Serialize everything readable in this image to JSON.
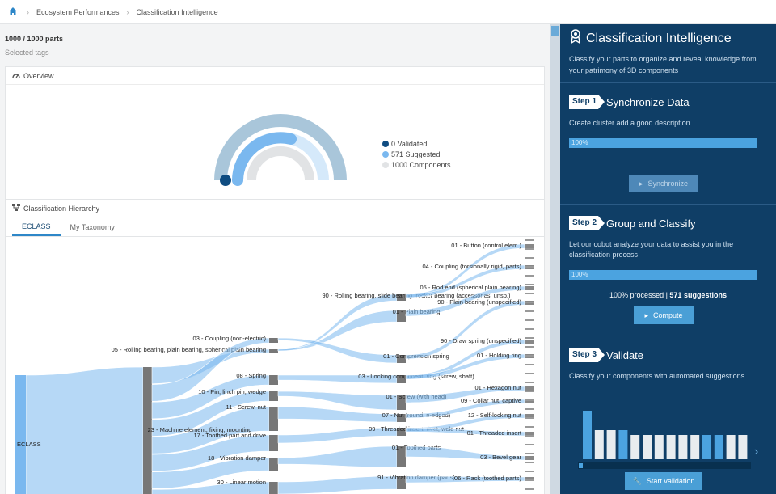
{
  "breadcrumb": {
    "home_icon": "home-icon",
    "items": [
      "Ecosystem Performances",
      "Classification Intelligence"
    ]
  },
  "main": {
    "parts_count": "1000 / 1000 parts",
    "selected_tags": "Selected tags",
    "overview": {
      "title": "Overview",
      "icon": "gauge-icon",
      "legend": [
        {
          "label": "0 Validated",
          "color": "#0f4c81"
        },
        {
          "label": "571 Suggested",
          "color": "#7ab8ef"
        },
        {
          "label": "1000 Components",
          "color": "#e1e3e5"
        }
      ],
      "gauge": {
        "validated": 0,
        "suggested": 571,
        "components": 1000
      }
    },
    "hierarchy": {
      "title": "Classification Hierarchy",
      "icon": "hierarchy-icon",
      "tabs": [
        {
          "label": "ECLASS",
          "active": true
        },
        {
          "label": "My Taxonomy",
          "active": false
        }
      ],
      "root_label": "ECLASS",
      "level1": [
        {
          "label": "23 - Machine element, fixing, mounting"
        }
      ],
      "level2": [
        "05 - Rolling bearing, plain bearing, spherical plain bearing",
        "03 - Coupling (non-electric)",
        "08 - Spring",
        "10 - Pin, linch pin, wedge",
        "11 - Screw, nut",
        "17 - Toothed part and drive",
        "18 - Vibration damper",
        "30 - Linear motion"
      ],
      "level3": [
        "90 - Rolling bearing, slide bearing, rocker bearing (accessories, unsp.)",
        "01 - Plain bearing",
        "01 - Compression spring",
        "03 - Locking component, ring (screw, shaft)",
        "01 - Screw (with head)",
        "07 - Nut (round, n-edged)",
        "09 - Threaded insert, rivet, weld nut",
        "01 - Toothed parts",
        "91 - Vibration damper (parts)"
      ],
      "level4": [
        "01 - Button (control elem.)",
        "04 - Coupling (torsionally rigid, parts)",
        "05 - Rod end (spherical plain bearing)",
        "90 - Plain bearing (unspecified)",
        "90 - Draw spring (unspecified)",
        "01 - Holding ring",
        "01 - Hexagon nut",
        "09 - Collar nut, captive",
        "12 - Self-locking nut",
        "01 - Threaded insert",
        "03 - Bevel gear",
        "06 - Rack (toothed parts)"
      ]
    }
  },
  "panel": {
    "title": "Classification Intelligence",
    "icon": "award-icon",
    "subtitle": "Classify your parts to organize and reveal knowledge from your patrimony of 3D components",
    "step1": {
      "badge": "Step 1",
      "title": "Synchronize Data",
      "desc": "Create cluster add a good description",
      "progress_label": "100%",
      "progress": 1.0,
      "button": "Synchronize"
    },
    "step2": {
      "badge": "Step 2",
      "title": "Group and Classify",
      "desc": "Let our cobot analyze your data to assist you in the classification process",
      "progress_label": "100%",
      "progress": 1.0,
      "processed_prefix": "100% processed | ",
      "processed_strong": "571 suggestions",
      "button": "Compute"
    },
    "step3": {
      "badge": "Step 3",
      "title": "Validate",
      "desc": "Classify your components with automated suggestions",
      "button": "Start validation",
      "bars": [
        1.0,
        0.6,
        0.6,
        0.6,
        0.5,
        0.5,
        0.5,
        0.5,
        0.5,
        0.5,
        0.5,
        0.5,
        0.5,
        0.5
      ],
      "highlight": [
        0,
        3,
        10,
        11
      ]
    }
  }
}
